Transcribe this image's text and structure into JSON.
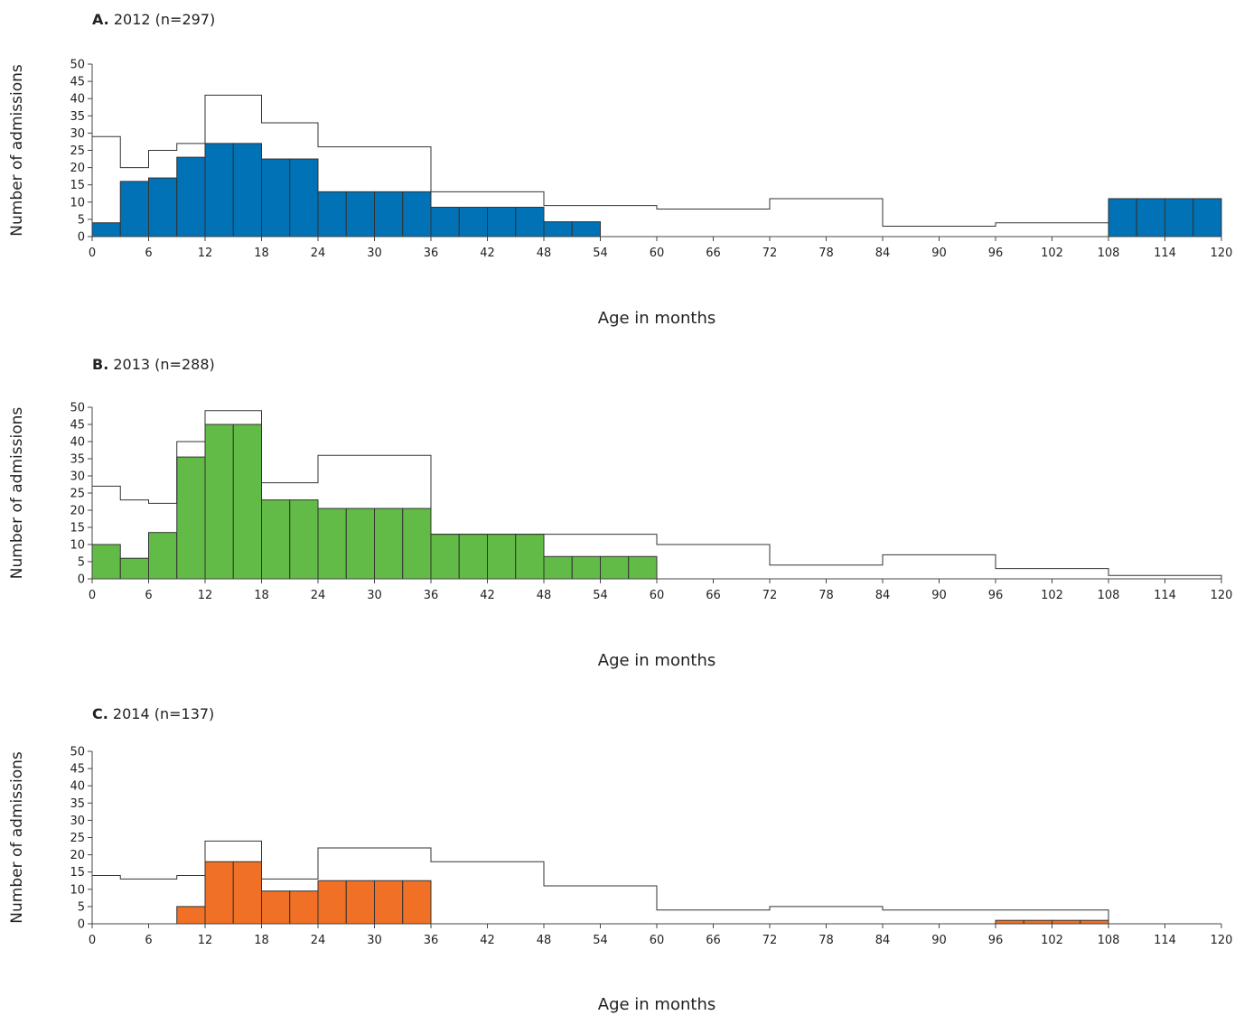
{
  "chart_data": [
    {
      "type": "bar",
      "panel_letter": "A.",
      "title": "2012 (n=297)",
      "xlabel": "Age in months",
      "ylabel": "Number of admissions",
      "xlim": [
        0,
        120
      ],
      "ylim": [
        0,
        50
      ],
      "x_ticks": [
        0,
        6,
        12,
        18,
        24,
        30,
        36,
        42,
        48,
        54,
        60,
        66,
        72,
        78,
        84,
        90,
        96,
        102,
        108,
        114,
        120
      ],
      "y_ticks": [
        0,
        5,
        10,
        15,
        20,
        25,
        30,
        35,
        40,
        45,
        50
      ],
      "bar_color": "#0072b5",
      "bars": [
        {
          "x0": 0,
          "x1": 3,
          "value": 4
        },
        {
          "x0": 3,
          "x1": 6,
          "value": 16
        },
        {
          "x0": 6,
          "x1": 9,
          "value": 17
        },
        {
          "x0": 9,
          "x1": 12,
          "value": 23
        },
        {
          "x0": 12,
          "x1": 15,
          "value": 27
        },
        {
          "x0": 15,
          "x1": 18,
          "value": 27
        },
        {
          "x0": 18,
          "x1": 21,
          "value": 22.5
        },
        {
          "x0": 21,
          "x1": 24,
          "value": 22.5
        },
        {
          "x0": 24,
          "x1": 27,
          "value": 13
        },
        {
          "x0": 27,
          "x1": 30,
          "value": 13
        },
        {
          "x0": 30,
          "x1": 33,
          "value": 13
        },
        {
          "x0": 33,
          "x1": 36,
          "value": 13
        },
        {
          "x0": 36,
          "x1": 39,
          "value": 8.5
        },
        {
          "x0": 39,
          "x1": 42,
          "value": 8.5
        },
        {
          "x0": 42,
          "x1": 45,
          "value": 8.5
        },
        {
          "x0": 45,
          "x1": 48,
          "value": 8.5
        },
        {
          "x0": 48,
          "x1": 51,
          "value": 4.3
        },
        {
          "x0": 51,
          "x1": 54,
          "value": 4.3
        },
        {
          "x0": 108,
          "x1": 111,
          "value": 11
        },
        {
          "x0": 111,
          "x1": 114,
          "value": 11
        },
        {
          "x0": 114,
          "x1": 117,
          "value": 11
        },
        {
          "x0": 117,
          "x1": 120,
          "value": 11
        }
      ],
      "outline_steps": [
        {
          "x0": 0,
          "x1": 3,
          "value": 29
        },
        {
          "x0": 3,
          "x1": 6,
          "value": 20
        },
        {
          "x0": 6,
          "x1": 9,
          "value": 25
        },
        {
          "x0": 9,
          "x1": 12,
          "value": 27
        },
        {
          "x0": 12,
          "x1": 18,
          "value": 41
        },
        {
          "x0": 18,
          "x1": 24,
          "value": 33
        },
        {
          "x0": 24,
          "x1": 36,
          "value": 26
        },
        {
          "x0": 36,
          "x1": 48,
          "value": 13
        },
        {
          "x0": 48,
          "x1": 60,
          "value": 9
        },
        {
          "x0": 60,
          "x1": 72,
          "value": 8
        },
        {
          "x0": 72,
          "x1": 84,
          "value": 11
        },
        {
          "x0": 84,
          "x1": 96,
          "value": 3
        },
        {
          "x0": 96,
          "x1": 108,
          "value": 4
        }
      ]
    },
    {
      "type": "bar",
      "panel_letter": "B.",
      "title": "2013 (n=288)",
      "xlabel": "Age in months",
      "ylabel": "Number of admissions",
      "xlim": [
        0,
        120
      ],
      "ylim": [
        0,
        50
      ],
      "x_ticks": [
        0,
        6,
        12,
        18,
        24,
        30,
        36,
        42,
        48,
        54,
        60,
        66,
        72,
        78,
        84,
        90,
        96,
        102,
        108,
        114,
        120
      ],
      "y_ticks": [
        0,
        5,
        10,
        15,
        20,
        25,
        30,
        35,
        40,
        45,
        50
      ],
      "bar_color": "#62bb46",
      "bars": [
        {
          "x0": 0,
          "x1": 3,
          "value": 10
        },
        {
          "x0": 3,
          "x1": 6,
          "value": 6
        },
        {
          "x0": 6,
          "x1": 9,
          "value": 13.5
        },
        {
          "x0": 9,
          "x1": 12,
          "value": 35.5
        },
        {
          "x0": 12,
          "x1": 15,
          "value": 45
        },
        {
          "x0": 15,
          "x1": 18,
          "value": 45
        },
        {
          "x0": 18,
          "x1": 21,
          "value": 23
        },
        {
          "x0": 21,
          "x1": 24,
          "value": 23
        },
        {
          "x0": 24,
          "x1": 27,
          "value": 20.5
        },
        {
          "x0": 27,
          "x1": 30,
          "value": 20.5
        },
        {
          "x0": 30,
          "x1": 33,
          "value": 20.5
        },
        {
          "x0": 33,
          "x1": 36,
          "value": 20.5
        },
        {
          "x0": 36,
          "x1": 39,
          "value": 13
        },
        {
          "x0": 39,
          "x1": 42,
          "value": 13
        },
        {
          "x0": 42,
          "x1": 45,
          "value": 13
        },
        {
          "x0": 45,
          "x1": 48,
          "value": 13
        },
        {
          "x0": 48,
          "x1": 51,
          "value": 6.5
        },
        {
          "x0": 51,
          "x1": 54,
          "value": 6.5
        },
        {
          "x0": 54,
          "x1": 57,
          "value": 6.5
        },
        {
          "x0": 57,
          "x1": 60,
          "value": 6.5
        }
      ],
      "outline_steps": [
        {
          "x0": 0,
          "x1": 3,
          "value": 27
        },
        {
          "x0": 3,
          "x1": 6,
          "value": 23
        },
        {
          "x0": 6,
          "x1": 9,
          "value": 22
        },
        {
          "x0": 9,
          "x1": 12,
          "value": 40
        },
        {
          "x0": 12,
          "x1": 18,
          "value": 49
        },
        {
          "x0": 18,
          "x1": 24,
          "value": 28
        },
        {
          "x0": 24,
          "x1": 36,
          "value": 36
        },
        {
          "x0": 36,
          "x1": 60,
          "value": 13
        },
        {
          "x0": 60,
          "x1": 72,
          "value": 10
        },
        {
          "x0": 72,
          "x1": 84,
          "value": 4
        },
        {
          "x0": 84,
          "x1": 96,
          "value": 7
        },
        {
          "x0": 96,
          "x1": 108,
          "value": 3
        },
        {
          "x0": 108,
          "x1": 120,
          "value": 1
        }
      ]
    },
    {
      "type": "bar",
      "panel_letter": "C.",
      "title": "2014 (n=137)",
      "xlabel": "Age in months",
      "ylabel": "Number of admissions",
      "xlim": [
        0,
        120
      ],
      "ylim": [
        0,
        50
      ],
      "x_ticks": [
        0,
        6,
        12,
        18,
        24,
        30,
        36,
        42,
        48,
        54,
        60,
        66,
        72,
        78,
        84,
        90,
        96,
        102,
        108,
        114,
        120
      ],
      "y_ticks": [
        0,
        5,
        10,
        15,
        20,
        25,
        30,
        35,
        40,
        45,
        50
      ],
      "bar_color": "#f07025",
      "bars": [
        {
          "x0": 9,
          "x1": 12,
          "value": 5
        },
        {
          "x0": 12,
          "x1": 15,
          "value": 18
        },
        {
          "x0": 15,
          "x1": 18,
          "value": 18
        },
        {
          "x0": 18,
          "x1": 21,
          "value": 9.5
        },
        {
          "x0": 21,
          "x1": 24,
          "value": 9.5
        },
        {
          "x0": 24,
          "x1": 27,
          "value": 12.5
        },
        {
          "x0": 27,
          "x1": 30,
          "value": 12.5
        },
        {
          "x0": 30,
          "x1": 33,
          "value": 12.5
        },
        {
          "x0": 33,
          "x1": 36,
          "value": 12.5
        },
        {
          "x0": 96,
          "x1": 99,
          "value": 1
        },
        {
          "x0": 99,
          "x1": 102,
          "value": 1
        },
        {
          "x0": 102,
          "x1": 105,
          "value": 1
        },
        {
          "x0": 105,
          "x1": 108,
          "value": 1
        }
      ],
      "outline_steps": [
        {
          "x0": 0,
          "x1": 3,
          "value": 14
        },
        {
          "x0": 3,
          "x1": 9,
          "value": 13
        },
        {
          "x0": 9,
          "x1": 12,
          "value": 14
        },
        {
          "x0": 12,
          "x1": 18,
          "value": 24
        },
        {
          "x0": 18,
          "x1": 24,
          "value": 13
        },
        {
          "x0": 24,
          "x1": 36,
          "value": 22
        },
        {
          "x0": 36,
          "x1": 48,
          "value": 18
        },
        {
          "x0": 48,
          "x1": 60,
          "value": 11
        },
        {
          "x0": 60,
          "x1": 72,
          "value": 4
        },
        {
          "x0": 72,
          "x1": 84,
          "value": 5
        },
        {
          "x0": 84,
          "x1": 108,
          "value": 4
        }
      ]
    }
  ]
}
